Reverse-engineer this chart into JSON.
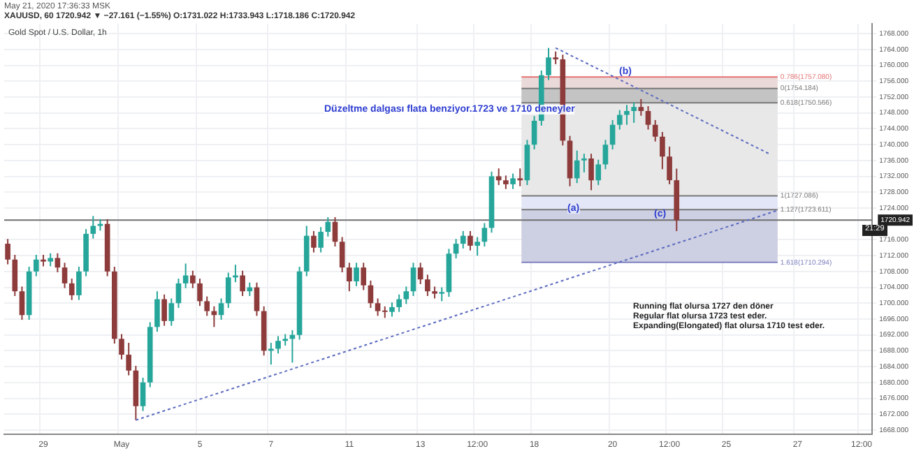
{
  "chart_data": {
    "type": "candlestick",
    "title": "Gold Spot / U.S. Dollar, 1h",
    "subtitle": "XAUUSD, 60  1720.942 ▼ −27.161 (−1.55%) O:1731.022 H:1733.943 L:1718.186 C:1720.942",
    "categories": [
      null,
      null,
      null,
      null,
      null,
      "29",
      null,
      null,
      null,
      null,
      null,
      null,
      null,
      null,
      null,
      null,
      "May",
      null,
      null,
      null,
      null,
      null,
      null,
      null,
      null,
      null,
      null,
      "5",
      null,
      null,
      null,
      null,
      null,
      null,
      null,
      null,
      null,
      "7",
      null,
      null,
      null,
      null,
      null,
      null,
      null,
      null,
      null,
      null,
      "11",
      null,
      null,
      null,
      null,
      null,
      null,
      null,
      null,
      null,
      "13",
      null,
      null,
      null,
      null,
      null,
      null,
      null,
      "12:00",
      null,
      null,
      null,
      null,
      null,
      null,
      null,
      "18",
      null,
      null,
      null,
      null,
      null,
      null,
      null,
      null,
      null,
      null,
      "20",
      null,
      null,
      null,
      null,
      null,
      null,
      null,
      "12:00",
      null,
      null,
      null,
      null,
      null,
      null,
      null,
      "25",
      null,
      null,
      null,
      null,
      null,
      null,
      null,
      null,
      null,
      "27",
      null,
      null,
      null,
      null,
      null,
      null,
      null,
      null,
      "12:00",
      null
    ],
    "ohlc": [
      [
        1715,
        1716.2,
        1709.8,
        1711
      ],
      [
        1711,
        1712.2,
        1701.8,
        1703
      ],
      [
        1703,
        1704.2,
        1695.8,
        1697
      ],
      [
        1697,
        1709.2,
        1695.8,
        1708
      ],
      [
        1708,
        1712.2,
        1706.8,
        1711
      ],
      [
        1711,
        1712.2,
        1709.3,
        1710.5
      ],
      [
        1710.5,
        1712.6,
        1709.3,
        1711.4
      ],
      [
        1711.4,
        1712.6,
        1707.8,
        1709
      ],
      [
        1709,
        1710.2,
        1703.8,
        1705
      ],
      [
        1705,
        1706.2,
        1700.8,
        1702
      ],
      [
        1702,
        1709.2,
        1700.8,
        1708
      ],
      [
        1708,
        1718.7,
        1706.8,
        1717.5
      ],
      [
        1717.5,
        1722,
        1716.3,
        1719.5
      ],
      [
        1719.5,
        1721.2,
        1718.3,
        1720
      ],
      [
        1720,
        1721.2,
        1706.8,
        1708
      ],
      [
        1708,
        1709.2,
        1689.8,
        1691
      ],
      [
        1691,
        1692.2,
        1685.8,
        1687
      ],
      [
        1687,
        1690,
        1681.8,
        1683
      ],
      [
        1683,
        1684.2,
        1670.5,
        1674
      ],
      [
        1674,
        1681.2,
        1672.8,
        1680
      ],
      [
        1680,
        1695.2,
        1678.8,
        1694
      ],
      [
        1694,
        1703,
        1692.8,
        1701
      ],
      [
        1701,
        1702.2,
        1694.3,
        1695.5
      ],
      [
        1695.5,
        1701.2,
        1694.3,
        1700
      ],
      [
        1700,
        1706.2,
        1698.8,
        1705
      ],
      [
        1705,
        1710,
        1703.8,
        1707
      ],
      [
        1707,
        1708.2,
        1703.8,
        1705
      ],
      [
        1705,
        1706.2,
        1699.3,
        1700.5
      ],
      [
        1700.5,
        1701.7,
        1696.8,
        1698
      ],
      [
        1698,
        1699.2,
        1694,
        1697
      ],
      [
        1697,
        1701.2,
        1695.8,
        1700
      ],
      [
        1700,
        1707.7,
        1698.8,
        1706.5
      ],
      [
        1706.5,
        1709.7,
        1705.3,
        1707
      ],
      [
        1707,
        1708.2,
        1701.8,
        1703
      ],
      [
        1703,
        1705.2,
        1701.8,
        1704
      ],
      [
        1704,
        1705.2,
        1696.8,
        1698
      ],
      [
        1698,
        1699.2,
        1686.8,
        1688
      ],
      [
        1688,
        1690,
        1684.5,
        1688.5
      ],
      [
        1688.5,
        1691.7,
        1687.3,
        1690.5
      ],
      [
        1690.5,
        1692.2,
        1689.3,
        1691
      ],
      [
        1691,
        1693.2,
        1685,
        1692
      ],
      [
        1692,
        1709.2,
        1690.8,
        1708
      ],
      [
        1708,
        1719.5,
        1706.8,
        1717
      ],
      [
        1717,
        1718.2,
        1712.8,
        1714
      ],
      [
        1714,
        1719.2,
        1712.8,
        1718
      ],
      [
        1718,
        1721.7,
        1716.8,
        1720.5
      ],
      [
        1720.5,
        1721.7,
        1714.3,
        1715.5
      ],
      [
        1715.5,
        1716.7,
        1707.8,
        1709
      ],
      [
        1709,
        1710.2,
        1703,
        1705.5
      ],
      [
        1705.5,
        1710.2,
        1704.3,
        1709
      ],
      [
        1709,
        1710.2,
        1703.3,
        1704.5
      ],
      [
        1704.5,
        1705.7,
        1698.8,
        1700
      ],
      [
        1700,
        1701.2,
        1696.8,
        1698
      ],
      [
        1698,
        1699.2,
        1696.3,
        1697.8
      ],
      [
        1697.8,
        1700.2,
        1696.6,
        1699
      ],
      [
        1699,
        1702.2,
        1697.8,
        1701
      ],
      [
        1701,
        1704.2,
        1699.8,
        1703
      ],
      [
        1703,
        1710.2,
        1701.8,
        1709
      ],
      [
        1709,
        1710.2,
        1704.8,
        1706
      ],
      [
        1706,
        1707.2,
        1701.8,
        1703
      ],
      [
        1703,
        1704.2,
        1701.2,
        1702.4
      ],
      [
        1702.4,
        1704,
        1700.5,
        1702.8
      ],
      [
        1702.8,
        1713.7,
        1701.6,
        1712.5
      ],
      [
        1712.5,
        1716.2,
        1711.3,
        1715
      ],
      [
        1715,
        1718.2,
        1713.8,
        1717
      ],
      [
        1717,
        1718.2,
        1713.3,
        1714.5
      ],
      [
        1714.5,
        1716.7,
        1712,
        1715.5
      ],
      [
        1715.5,
        1720.2,
        1714.3,
        1719
      ],
      [
        1719,
        1733.2,
        1717.8,
        1732
      ],
      [
        1732,
        1734,
        1729.8,
        1731
      ],
      [
        1731,
        1732.2,
        1728.8,
        1730
      ],
      [
        1730,
        1732.7,
        1728.8,
        1731.5
      ],
      [
        1731.5,
        1734,
        1729.5,
        1731
      ],
      [
        1731,
        1741.2,
        1729.8,
        1740
      ],
      [
        1740,
        1747.2,
        1738.8,
        1746
      ],
      [
        1746,
        1758.7,
        1744.8,
        1757.5
      ],
      [
        1757.5,
        1764.4,
        1756.3,
        1762
      ],
      [
        1762,
        1763.5,
        1760.3,
        1761.5
      ],
      [
        1761.5,
        1762.7,
        1739.8,
        1741
      ],
      [
        1741,
        1742.2,
        1729.5,
        1731.5
      ],
      [
        1731.5,
        1738.5,
        1730.3,
        1736
      ],
      [
        1736,
        1737.7,
        1733,
        1736.5
      ],
      [
        1736.5,
        1737.7,
        1728.5,
        1731
      ],
      [
        1731,
        1736.2,
        1729.8,
        1735
      ],
      [
        1735,
        1741.2,
        1733.8,
        1740
      ],
      [
        1740,
        1746.2,
        1738.8,
        1745
      ],
      [
        1745,
        1748.7,
        1743.8,
        1747.5
      ],
      [
        1747.5,
        1750,
        1745,
        1748.5
      ],
      [
        1748.5,
        1750.7,
        1745.5,
        1749.5
      ],
      [
        1749.5,
        1751.5,
        1747.3,
        1748.5
      ],
      [
        1748.5,
        1749.7,
        1743.8,
        1745
      ],
      [
        1745,
        1746.2,
        1740.8,
        1742
      ],
      [
        1742,
        1743.2,
        1733.8,
        1737
      ],
      [
        1737,
        1739.5,
        1730,
        1731.022
      ],
      [
        1731.022,
        1733.943,
        1718.186,
        1720.942
      ],
      null,
      null,
      null,
      null,
      null,
      null,
      null,
      null,
      null,
      null,
      null,
      null,
      null,
      null,
      null,
      null,
      null,
      null,
      null,
      null,
      null,
      null,
      null,
      null,
      null,
      null,
      null
    ],
    "series": [
      {
        "type": "line",
        "color": "#5c6bc0",
        "line_style": "dotted",
        "values": [
          null,
          null,
          null,
          null,
          null,
          null,
          null,
          null,
          null,
          null,
          null,
          null,
          null,
          null,
          null,
          null,
          null,
          null,
          1670.5,
          null,
          null,
          null,
          null,
          null,
          null,
          null,
          null,
          null,
          null,
          null,
          null,
          null,
          null,
          null,
          null,
          null,
          null,
          null,
          null,
          null,
          null,
          null,
          null,
          null,
          null,
          null,
          null,
          null,
          null,
          null,
          null,
          null,
          null,
          null,
          null,
          null,
          null,
          null,
          null,
          null,
          null,
          null,
          null,
          null,
          null,
          null,
          null,
          null,
          null,
          null,
          null,
          null,
          null,
          null,
          null,
          null,
          null,
          null,
          null,
          null,
          null,
          null,
          null,
          null,
          null,
          null,
          null,
          null,
          null,
          null,
          null,
          null,
          null,
          null,
          null,
          null,
          null,
          null,
          null,
          null,
          null,
          null,
          null,
          null,
          null,
          null,
          null,
          null,
          1723.3,
          null,
          null,
          null,
          null,
          null,
          null,
          null,
          null,
          null,
          null,
          null,
          null,
          null
        ]
      },
      {
        "type": "line",
        "color": "#5c6bc0",
        "line_style": "dotted",
        "values": [
          null,
          null,
          null,
          null,
          null,
          null,
          null,
          null,
          null,
          null,
          null,
          null,
          null,
          null,
          null,
          null,
          null,
          null,
          null,
          null,
          null,
          null,
          null,
          null,
          null,
          null,
          null,
          null,
          null,
          null,
          null,
          null,
          null,
          null,
          null,
          null,
          null,
          null,
          null,
          null,
          null,
          null,
          null,
          null,
          null,
          null,
          null,
          null,
          null,
          null,
          null,
          null,
          null,
          null,
          null,
          null,
          null,
          null,
          null,
          null,
          null,
          null,
          null,
          null,
          null,
          null,
          null,
          null,
          null,
          null,
          null,
          null,
          null,
          null,
          null,
          null,
          null,
          1764.4,
          null,
          null,
          null,
          null,
          null,
          null,
          null,
          null,
          null,
          null,
          null,
          null,
          null,
          null,
          null,
          null,
          null,
          null,
          null,
          null,
          null,
          null,
          null,
          null,
          null,
          null,
          null,
          null,
          null,
          1737.7,
          null,
          null,
          null,
          null,
          null,
          null,
          null,
          null,
          null,
          null,
          null,
          null,
          null,
          null
        ]
      }
    ],
    "ylim": [
      1667,
      1770.5
    ],
    "yticks": [
      {
        "value": 1668,
        "label": "1668.000"
      },
      {
        "value": 1672,
        "label": "1672.000"
      },
      {
        "value": 1676,
        "label": "1676.000"
      },
      {
        "value": 1680,
        "label": "1680.000"
      },
      {
        "value": 1684,
        "label": "1684.000"
      },
      {
        "value": 1688,
        "label": "1688.000"
      },
      {
        "value": 1692,
        "label": "1692.000"
      },
      {
        "value": 1696,
        "label": "1696.000"
      },
      {
        "value": 1700,
        "label": "1700.000"
      },
      {
        "value": 1704,
        "label": "1704.000"
      },
      {
        "value": 1708,
        "label": "1708.000"
      },
      {
        "value": 1712,
        "label": "1712.000"
      },
      {
        "value": 1716,
        "label": "1716.000"
      },
      {
        "value": 1724,
        "label": "1724.000"
      },
      {
        "value": 1728,
        "label": "1728.000"
      },
      {
        "value": 1732,
        "label": "1732.000"
      },
      {
        "value": 1736,
        "label": "1736.000"
      },
      {
        "value": 1740,
        "label": "1740.000"
      },
      {
        "value": 1744,
        "label": "1744.000"
      },
      {
        "value": 1748,
        "label": "1748.000"
      },
      {
        "value": 1752,
        "label": "1752.000"
      },
      {
        "value": 1756,
        "label": "1756.000"
      },
      {
        "value": 1760,
        "label": "1760.000"
      },
      {
        "value": 1764,
        "label": "1764.000"
      },
      {
        "value": 1768,
        "label": "1768.000"
      }
    ],
    "ref_lines": [
      {
        "axis": "y",
        "value": 1757.08,
        "label": "0.786(1757.080)",
        "color": "#e57373"
      },
      {
        "axis": "y",
        "value": 1754.184,
        "label": "0(1754.184)",
        "color": "#787878"
      },
      {
        "axis": "y",
        "value": 1750.566,
        "label": "0.618(1750.566)",
        "color": "#787878"
      },
      {
        "axis": "y",
        "value": 1727.086,
        "label": "1(1727.086)",
        "color": "#787878"
      },
      {
        "axis": "y",
        "value": 1723.611,
        "label": "1.127(1723.611)",
        "color": "#787878"
      },
      {
        "axis": "y",
        "value": 1710.294,
        "label": "1.618(1710.294)",
        "color": "#7e80c0"
      },
      {
        "axis": "y",
        "value": 1720.942,
        "label": "1720.942",
        "color": "#6f6f6f"
      }
    ],
    "bands": [
      {
        "axis": "y",
        "from": 1754.184,
        "to": 1757.08,
        "color": "#ead9d9"
      },
      {
        "axis": "y",
        "from": 1750.566,
        "to": 1754.184,
        "color": "#c4c4c4"
      },
      {
        "axis": "y",
        "from": 1727.086,
        "to": 1750.566,
        "color": "#e8e8e8"
      },
      {
        "axis": "y",
        "from": 1723.611,
        "to": 1727.086,
        "color": "#e3e6f6"
      },
      {
        "axis": "y",
        "from": 1710.294,
        "to": 1723.611,
        "color": "#cdcfe2"
      }
    ],
    "annotations": [
      "May 21, 2020 17:36:33 MSK",
      "Düzeltme dalgası flata benziyor.1723 ve  1710 deneyler",
      "(b)",
      "(a)",
      "(c)",
      "Running flat olursa 1727 den döner",
      "Regular flat olursa 1723 test eder.",
      "Expanding(Elongated) flat olursa 1710 test eder.",
      "21:29"
    ],
    "grid": true
  }
}
